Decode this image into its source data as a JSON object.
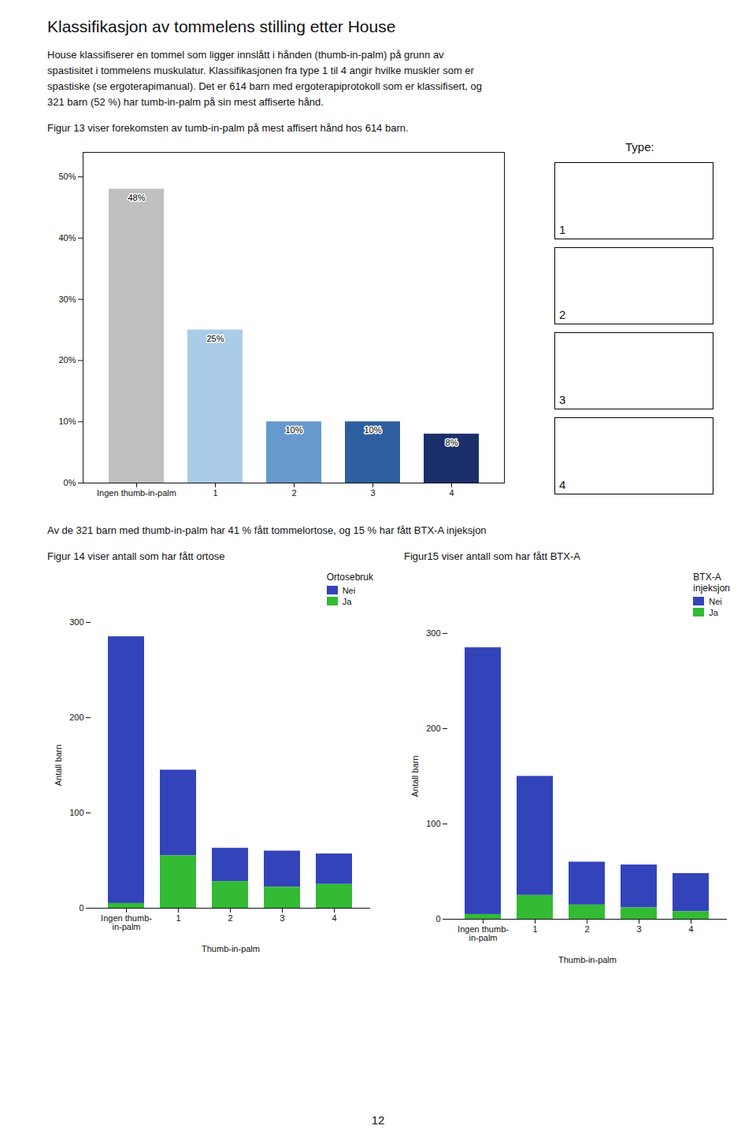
{
  "chart_data": [
    {
      "type": "bar",
      "title": "Klassifikasjon av tommelens stilling etter House",
      "subtitle": "House klassifiserer en tommel som ligger innslått i hånden (thumb-in-palm) på grunn av\nspastisitet i tommelens muskulatur. Klassifikasjonen fra type 1 til 4 angir hvilke muskler som er\nspastiske (se ergoterapimanual). Det er 614 barn med ergoterapiprotokoll som er klassifisert, og\n321 barn (52 %) har tumb-in-palm på sin mest affiserte hånd.",
      "annotations": [
        "Figur 13 viser forekomsten av tumb-in-palm på mest affisert hånd hos 614 barn.",
        "Type:",
        "1",
        "2",
        "3",
        "4",
        "Av de 321 barn med thumb-in-palm har 41 % fått tommelortose, og 15 % har fått BTX-A injeksjon",
        "12"
      ],
      "categories": [
        "Ingen thumb-in-palm",
        "1",
        "2",
        "3",
        "4"
      ],
      "values": [
        48,
        25,
        10,
        10,
        8
      ],
      "value_labels": [
        "48%",
        "25%",
        "10%",
        "10%",
        "8%"
      ],
      "data_labels": true,
      "colors": [
        "#c0c0c0",
        "#aacce8",
        "#6699cc",
        "#2d5f9e",
        "#1a2f6b"
      ],
      "ylim": [
        0,
        54
      ],
      "yticks": [
        {
          "value": 0,
          "label": "0%"
        },
        {
          "value": 10,
          "label": "10%"
        },
        {
          "value": 20,
          "label": "20%"
        },
        {
          "value": 30,
          "label": "30%"
        },
        {
          "value": 40,
          "label": "40%"
        },
        {
          "value": 50,
          "label": "50%"
        }
      ]
    },
    {
      "type": "bar",
      "title": "Figur 14 viser antall som har fått ortose",
      "stacked": true,
      "legend": "upper right",
      "legend_title": "Ortosebruk",
      "categories": [
        "Ingen thumb-\nin-palm",
        "1",
        "2",
        "3",
        "4"
      ],
      "series": [
        {
          "name": "Nei",
          "color": "#3344bb",
          "values": [
            280,
            90,
            35,
            38,
            32
          ]
        },
        {
          "name": "Ja",
          "color": "#33bb33",
          "values": [
            5,
            55,
            28,
            22,
            25
          ]
        }
      ],
      "xlabel": "Thumb-in-palm",
      "ylabel": "Antall barn",
      "ylim": [
        0,
        300
      ],
      "yticks": [
        0,
        100,
        200,
        300
      ]
    },
    {
      "type": "bar",
      "title": "Figur15 viser antall som har fått BTX-A",
      "stacked": true,
      "legend": "upper right",
      "legend_title": "BTX-A\ninjeksjon",
      "categories": [
        "Ingen thumb-\nin-palm",
        "1",
        "2",
        "3",
        "4"
      ],
      "series": [
        {
          "name": "Nei",
          "color": "#3344bb",
          "values": [
            280,
            125,
            45,
            45,
            40
          ]
        },
        {
          "name": "Ja",
          "color": "#33bb33",
          "values": [
            5,
            25,
            15,
            12,
            8
          ]
        }
      ],
      "xlabel": "Thumb-in-palm",
      "ylabel": "Antall barn",
      "ylim": [
        0,
        300
      ],
      "yticks": [
        0,
        100,
        200,
        300
      ]
    }
  ]
}
